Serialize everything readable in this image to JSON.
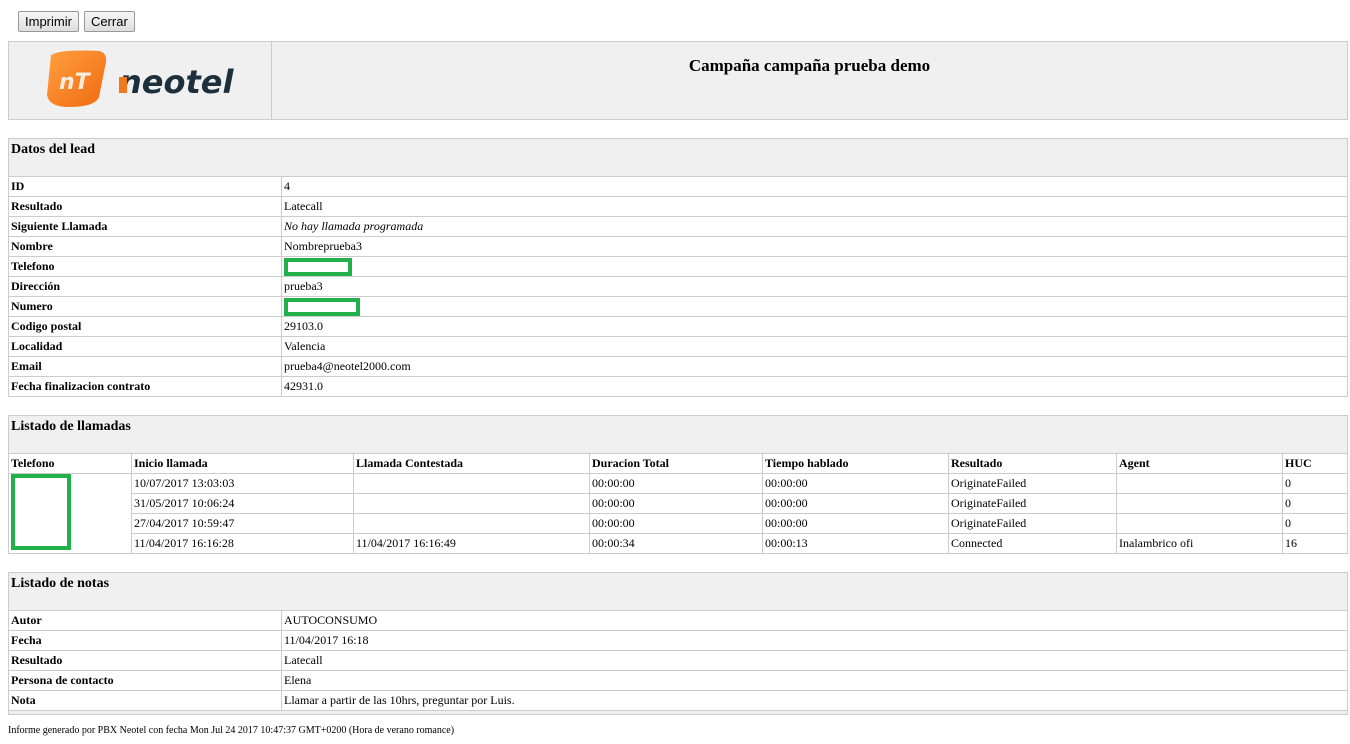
{
  "toolbar": {
    "print_label": "Imprimir",
    "close_label": "Cerrar"
  },
  "header": {
    "logo_text": "neotel",
    "logo_mark": "NT",
    "title": "Campaña campaña prueba demo"
  },
  "lead": {
    "section_title": "Datos del lead",
    "rows": [
      {
        "label": "ID",
        "value": "4"
      },
      {
        "label": "Resultado",
        "value": "Latecall"
      },
      {
        "label": "Siguiente Llamada",
        "value": "No hay llamada programada"
      },
      {
        "label": "Nombre",
        "value": "Nombreprueba3"
      },
      {
        "label": "Telefono",
        "value": ""
      },
      {
        "label": "Dirección",
        "value": "prueba3"
      },
      {
        "label": "Numero",
        "value": ""
      },
      {
        "label": "Codigo postal",
        "value": "29103.0"
      },
      {
        "label": "Localidad",
        "value": "Valencia"
      },
      {
        "label": "Email",
        "value": "prueba4@neotel2000.com"
      },
      {
        "label": "Fecha finalizacion contrato",
        "value": "42931.0"
      }
    ]
  },
  "calls": {
    "section_title": "Listado de llamadas",
    "columns": [
      "Telefono",
      "Inicio llamada",
      "Llamada Contestada",
      "Duracion Total",
      "Tiempo hablado",
      "Resultado",
      "Agent",
      "HUC"
    ],
    "rows": [
      [
        "",
        "10/07/2017 13:03:03",
        "",
        "00:00:00",
        "00:00:00",
        "OriginateFailed",
        "",
        "0"
      ],
      [
        "",
        "31/05/2017 10:06:24",
        "",
        "00:00:00",
        "00:00:00",
        "OriginateFailed",
        "",
        "0"
      ],
      [
        "",
        "27/04/2017 10:59:47",
        "",
        "00:00:00",
        "00:00:00",
        "OriginateFailed",
        "",
        "0"
      ],
      [
        "",
        "11/04/2017 16:16:28",
        "11/04/2017 16:16:49",
        "00:00:34",
        "00:00:13",
        "Connected",
        "Inalambrico ofi",
        "16"
      ]
    ]
  },
  "notes": {
    "section_title": "Listado de notas",
    "rows": [
      {
        "label": "Autor",
        "value": "AUTOCONSUMO"
      },
      {
        "label": "Fecha",
        "value": "11/04/2017 16:18"
      },
      {
        "label": "Resultado",
        "value": "Latecall"
      },
      {
        "label": "Persona de contacto",
        "value": "Elena"
      },
      {
        "label": "Nota",
        "value": "Llamar a partir de las 10hrs, preguntar por Luis."
      }
    ]
  },
  "footer": "Informe generado por PBX Neotel con fecha Mon Jul 24 2017 10:47:37 GMT+0200 (Hora de verano romance)"
}
